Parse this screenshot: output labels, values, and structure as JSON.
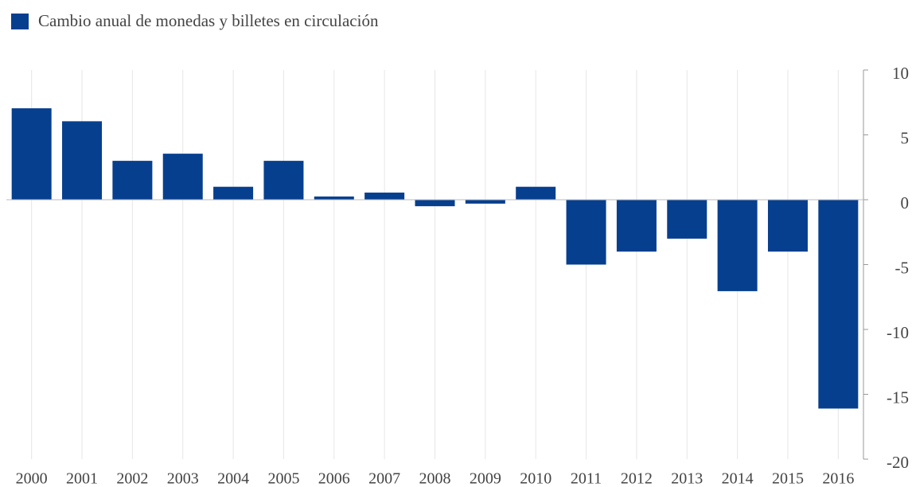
{
  "chart_data": {
    "type": "bar",
    "categories": [
      "2000",
      "2001",
      "2002",
      "2003",
      "2004",
      "2005",
      "2006",
      "2007",
      "2008",
      "2009",
      "2010",
      "2011",
      "2012",
      "2013",
      "2014",
      "2015",
      "2016"
    ],
    "series": [
      {
        "name": "Cambio anual de monedas y billetes en circulación",
        "color": "#073f8f",
        "values": [
          7.05,
          6.05,
          3.0,
          3.55,
          1.0,
          3.0,
          0.25,
          0.55,
          -0.5,
          -0.3,
          1.0,
          -5.0,
          -4.0,
          -3.0,
          -7.05,
          -4.0,
          -16.1
        ]
      }
    ],
    "ylim": [
      -20,
      10
    ],
    "yticks": [
      10,
      5,
      0,
      -5,
      -10,
      -15,
      -20
    ],
    "grid": true,
    "legend": "top-left"
  }
}
